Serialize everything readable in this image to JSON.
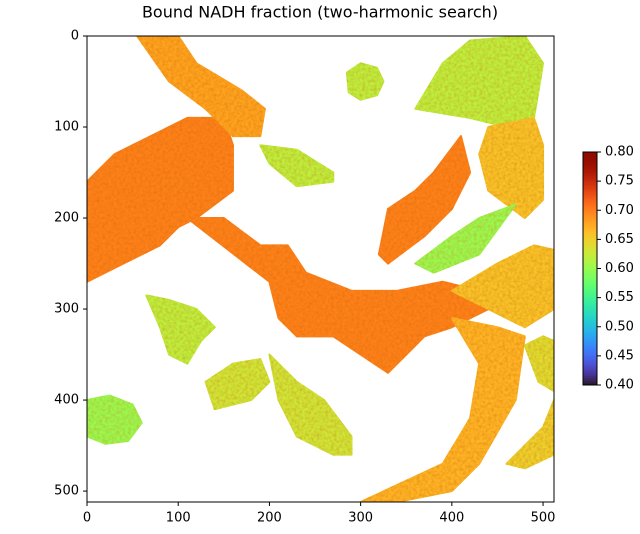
{
  "chart_data": {
    "type": "image",
    "title": "Bound NADH fraction (two-harmonic search)",
    "xlim": [
      0,
      512
    ],
    "ylim": [
      512,
      0
    ],
    "xticks": [
      0,
      100,
      200,
      300,
      400,
      500
    ],
    "yticks": [
      0,
      100,
      200,
      300,
      400,
      500
    ],
    "colormap": "turbo",
    "clim": [
      0.4,
      0.8
    ],
    "cticks": [
      {
        "value": 0.4,
        "label": "0.40"
      },
      {
        "value": 0.45,
        "label": "0.45"
      },
      {
        "value": 0.5,
        "label": "0.50"
      },
      {
        "value": 0.55,
        "label": "0.55"
      },
      {
        "value": 0.6,
        "label": "0.60"
      },
      {
        "value": 0.65,
        "label": "0.65"
      },
      {
        "value": 0.7,
        "label": "0.70"
      },
      {
        "value": 0.75,
        "label": "0.75"
      },
      {
        "value": 0.8,
        "label": "0.80"
      }
    ],
    "cells": [
      {
        "value": 0.7,
        "outline": [
          [
            0,
            160
          ],
          [
            30,
            130
          ],
          [
            70,
            110
          ],
          [
            110,
            90
          ],
          [
            150,
            90
          ],
          [
            160,
            120
          ],
          [
            160,
            170
          ],
          [
            120,
            200
          ],
          [
            100,
            210
          ],
          [
            80,
            230
          ],
          [
            40,
            250
          ],
          [
            0,
            270
          ]
        ]
      },
      {
        "value": 0.68,
        "outline": [
          [
            55,
            0
          ],
          [
            100,
            0
          ],
          [
            120,
            30
          ],
          [
            170,
            60
          ],
          [
            195,
            80
          ],
          [
            190,
            110
          ],
          [
            160,
            110
          ],
          [
            130,
            80
          ],
          [
            90,
            50
          ]
        ]
      },
      {
        "value": 0.7,
        "outline": [
          [
            110,
            200
          ],
          [
            150,
            200
          ],
          [
            190,
            230
          ],
          [
            220,
            230
          ],
          [
            240,
            260
          ],
          [
            290,
            280
          ],
          [
            340,
            280
          ],
          [
            390,
            270
          ],
          [
            430,
            280
          ],
          [
            440,
            300
          ],
          [
            400,
            320
          ],
          [
            370,
            330
          ],
          [
            330,
            370
          ],
          [
            300,
            350
          ],
          [
            270,
            330
          ],
          [
            230,
            330
          ],
          [
            210,
            310
          ],
          [
            200,
            270
          ]
        ]
      },
      {
        "value": 0.62,
        "outline": [
          [
            285,
            40
          ],
          [
            300,
            30
          ],
          [
            318,
            35
          ],
          [
            325,
            50
          ],
          [
            318,
            65
          ],
          [
            300,
            70
          ],
          [
            287,
            62
          ]
        ]
      },
      {
        "value": 0.62,
        "outline": [
          [
            190,
            120
          ],
          [
            230,
            125
          ],
          [
            270,
            150
          ],
          [
            270,
            160
          ],
          [
            230,
            165
          ],
          [
            200,
            140
          ]
        ]
      },
      {
        "value": 0.62,
        "outline": [
          [
            360,
            80
          ],
          [
            390,
            30
          ],
          [
            420,
            5
          ],
          [
            480,
            0
          ],
          [
            500,
            30
          ],
          [
            490,
            90
          ],
          [
            460,
            100
          ],
          [
            420,
            90
          ]
        ]
      },
      {
        "value": 0.66,
        "outline": [
          [
            440,
            100
          ],
          [
            490,
            90
          ],
          [
            500,
            120
          ],
          [
            500,
            180
          ],
          [
            480,
            200
          ],
          [
            440,
            170
          ],
          [
            430,
            130
          ]
        ]
      },
      {
        "value": 0.7,
        "outline": [
          [
            320,
            240
          ],
          [
            330,
            190
          ],
          [
            360,
            170
          ],
          [
            380,
            150
          ],
          [
            410,
            110
          ],
          [
            420,
            150
          ],
          [
            400,
            190
          ],
          [
            370,
            220
          ],
          [
            330,
            250
          ]
        ]
      },
      {
        "value": 0.6,
        "outline": [
          [
            360,
            250
          ],
          [
            400,
            220
          ],
          [
            430,
            200
          ],
          [
            470,
            185
          ],
          [
            430,
            240
          ],
          [
            380,
            260
          ]
        ]
      },
      {
        "value": 0.66,
        "outline": [
          [
            400,
            280
          ],
          [
            450,
            250
          ],
          [
            490,
            230
          ],
          [
            512,
            235
          ],
          [
            512,
            300
          ],
          [
            480,
            320
          ]
        ]
      },
      {
        "value": 0.67,
        "outline": [
          [
            400,
            310
          ],
          [
            450,
            320
          ],
          [
            480,
            330
          ],
          [
            470,
            400
          ],
          [
            430,
            470
          ],
          [
            400,
            500
          ],
          [
            340,
            512
          ],
          [
            300,
            512
          ],
          [
            390,
            470
          ],
          [
            420,
            420
          ],
          [
            430,
            360
          ]
        ]
      },
      {
        "value": 0.62,
        "outline": [
          [
            65,
            285
          ],
          [
            90,
            290
          ],
          [
            120,
            300
          ],
          [
            140,
            320
          ],
          [
            125,
            335
          ],
          [
            110,
            360
          ],
          [
            90,
            350
          ],
          [
            80,
            320
          ]
        ]
      },
      {
        "value": 0.63,
        "outline": [
          [
            130,
            380
          ],
          [
            160,
            360
          ],
          [
            190,
            355
          ],
          [
            200,
            380
          ],
          [
            180,
            400
          ],
          [
            140,
            410
          ]
        ]
      },
      {
        "value": 0.63,
        "outline": [
          [
            200,
            350
          ],
          [
            230,
            380
          ],
          [
            260,
            400
          ],
          [
            290,
            440
          ],
          [
            290,
            460
          ],
          [
            270,
            460
          ],
          [
            230,
            440
          ],
          [
            210,
            400
          ]
        ]
      },
      {
        "value": 0.6,
        "outline": [
          [
            0,
            400
          ],
          [
            25,
            395
          ],
          [
            50,
            405
          ],
          [
            60,
            425
          ],
          [
            45,
            445
          ],
          [
            20,
            448
          ],
          [
            0,
            440
          ]
        ]
      },
      {
        "value": 0.65,
        "outline": [
          [
            460,
            470
          ],
          [
            500,
            430
          ],
          [
            512,
            400
          ],
          [
            512,
            460
          ],
          [
            480,
            475
          ]
        ]
      },
      {
        "value": 0.64,
        "outline": [
          [
            480,
            340
          ],
          [
            500,
            330
          ],
          [
            512,
            335
          ],
          [
            512,
            390
          ],
          [
            495,
            380
          ]
        ]
      }
    ]
  }
}
